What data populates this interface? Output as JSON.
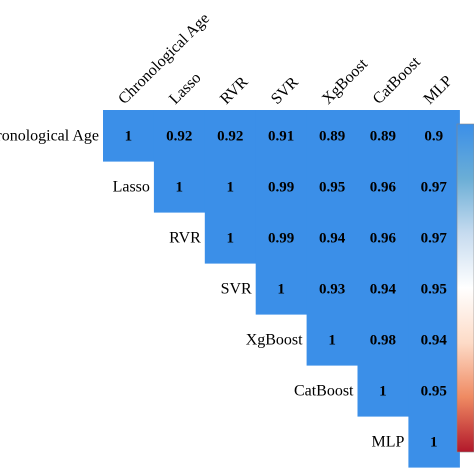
{
  "chart_data": {
    "type": "heatmap",
    "title": "",
    "variables": [
      "Chronological Age",
      "Lasso",
      "RVR",
      "SVR",
      "XgBoost",
      "CatBoost",
      "MLP"
    ],
    "matrix": [
      [
        1,
        0.92,
        0.92,
        0.91,
        0.89,
        0.89,
        0.9
      ],
      [
        null,
        1,
        1,
        0.99,
        0.95,
        0.96,
        0.97
      ],
      [
        null,
        null,
        1,
        0.99,
        0.94,
        0.96,
        0.97
      ],
      [
        null,
        null,
        null,
        1,
        0.93,
        0.94,
        0.95
      ],
      [
        null,
        null,
        null,
        null,
        1,
        0.98,
        0.94
      ],
      [
        null,
        null,
        null,
        null,
        null,
        1,
        0.95
      ],
      [
        null,
        null,
        null,
        null,
        null,
        null,
        1
      ]
    ],
    "display_labels": [
      [
        "1",
        "0.92",
        "0.92",
        "0.91",
        "0.89",
        "0.89",
        "0.9"
      ],
      [
        null,
        "1",
        "1",
        "0.99",
        "0.95",
        "0.96",
        "0.97"
      ],
      [
        null,
        null,
        "1",
        "0.99",
        "0.94",
        "0.96",
        "0.97"
      ],
      [
        null,
        null,
        null,
        "1",
        "0.93",
        "0.94",
        "0.95"
      ],
      [
        null,
        null,
        null,
        null,
        "1",
        "0.98",
        "0.94"
      ],
      [
        null,
        null,
        null,
        null,
        null,
        "1",
        "0.95"
      ],
      [
        null,
        null,
        null,
        null,
        null,
        null,
        "1"
      ]
    ],
    "layout": "upper-triangle",
    "grid": false,
    "legend": "right",
    "colorbar": {
      "colors": [
        "#b2182b",
        "#ef8a62",
        "#fddbc7",
        "#ffffff",
        "#c6dbef",
        "#6baed6",
        "#3b8fe8"
      ]
    },
    "cell_color": "#3b8fe8"
  }
}
